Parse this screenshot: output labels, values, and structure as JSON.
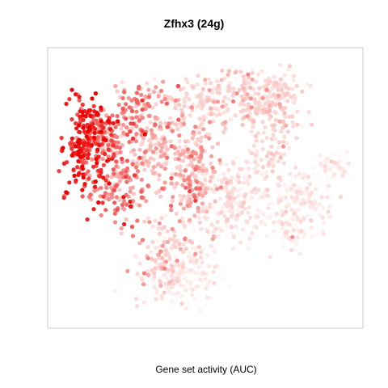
{
  "chart_data": {
    "type": "scatter",
    "title": "Zfhx3 (24g)",
    "xlabel": "Gene set activity (AUC)",
    "ylabel": "",
    "grid": false,
    "legend": "none",
    "axes_visible": false,
    "xlim": [
      0,
      100
    ],
    "ylim": [
      0,
      100
    ],
    "color_scale": {
      "low": "#ffffff",
      "mid": "#f9c8c5",
      "high": "#ee0000",
      "domain": [
        0,
        1
      ]
    },
    "clusters": [
      {
        "x": 10,
        "y": 64,
        "sx": 4.0,
        "sy": 11.0,
        "n": 200,
        "value": 0.9
      },
      {
        "x": 18,
        "y": 71,
        "sx": 5.0,
        "sy": 6.0,
        "n": 130,
        "value": 0.7
      },
      {
        "x": 23,
        "y": 50,
        "sx": 5.0,
        "sy": 6.0,
        "n": 110,
        "value": 0.65
      },
      {
        "x": 33,
        "y": 62,
        "sx": 7.0,
        "sy": 8.0,
        "n": 180,
        "value": 0.5
      },
      {
        "x": 29,
        "y": 82,
        "sx": 5.0,
        "sy": 5.0,
        "n": 70,
        "value": 0.6
      },
      {
        "x": 45,
        "y": 72,
        "sx": 5.0,
        "sy": 6.0,
        "n": 70,
        "value": 0.45
      },
      {
        "x": 47,
        "y": 52,
        "sx": 4.0,
        "sy": 9.0,
        "n": 120,
        "value": 0.55
      },
      {
        "x": 47,
        "y": 85,
        "sx": 6.0,
        "sy": 5.0,
        "n": 80,
        "value": 0.35
      },
      {
        "x": 62,
        "y": 85,
        "sx": 6.0,
        "sy": 5.0,
        "n": 110,
        "value": 0.42
      },
      {
        "x": 72,
        "y": 77,
        "sx": 5.0,
        "sy": 6.0,
        "n": 90,
        "value": 0.38
      },
      {
        "x": 75,
        "y": 88,
        "sx": 5.0,
        "sy": 4.0,
        "n": 60,
        "value": 0.3
      },
      {
        "x": 60,
        "y": 50,
        "sx": 7.0,
        "sy": 6.0,
        "n": 130,
        "value": 0.26
      },
      {
        "x": 57,
        "y": 38,
        "sx": 7.0,
        "sy": 6.0,
        "n": 110,
        "value": 0.18
      },
      {
        "x": 82,
        "y": 45,
        "sx": 7.0,
        "sy": 5.0,
        "n": 150,
        "value": 0.16
      },
      {
        "x": 92,
        "y": 58,
        "sx": 3.5,
        "sy": 2.5,
        "n": 60,
        "value": 0.08
      },
      {
        "x": 79,
        "y": 33,
        "sx": 4.0,
        "sy": 3.5,
        "n": 40,
        "value": 0.18
      },
      {
        "x": 42,
        "y": 17,
        "sx": 7.0,
        "sy": 6.0,
        "n": 200,
        "value": 0.16
      },
      {
        "x": 38,
        "y": 30,
        "sx": 5.0,
        "sy": 5.0,
        "n": 60,
        "value": 0.42
      },
      {
        "x": 35,
        "y": 20,
        "sx": 4.0,
        "sy": 4.0,
        "n": 40,
        "value": 0.48
      },
      {
        "x": 70,
        "y": 62,
        "sx": 4.0,
        "sy": 5.0,
        "n": 50,
        "value": 0.3
      }
    ]
  }
}
